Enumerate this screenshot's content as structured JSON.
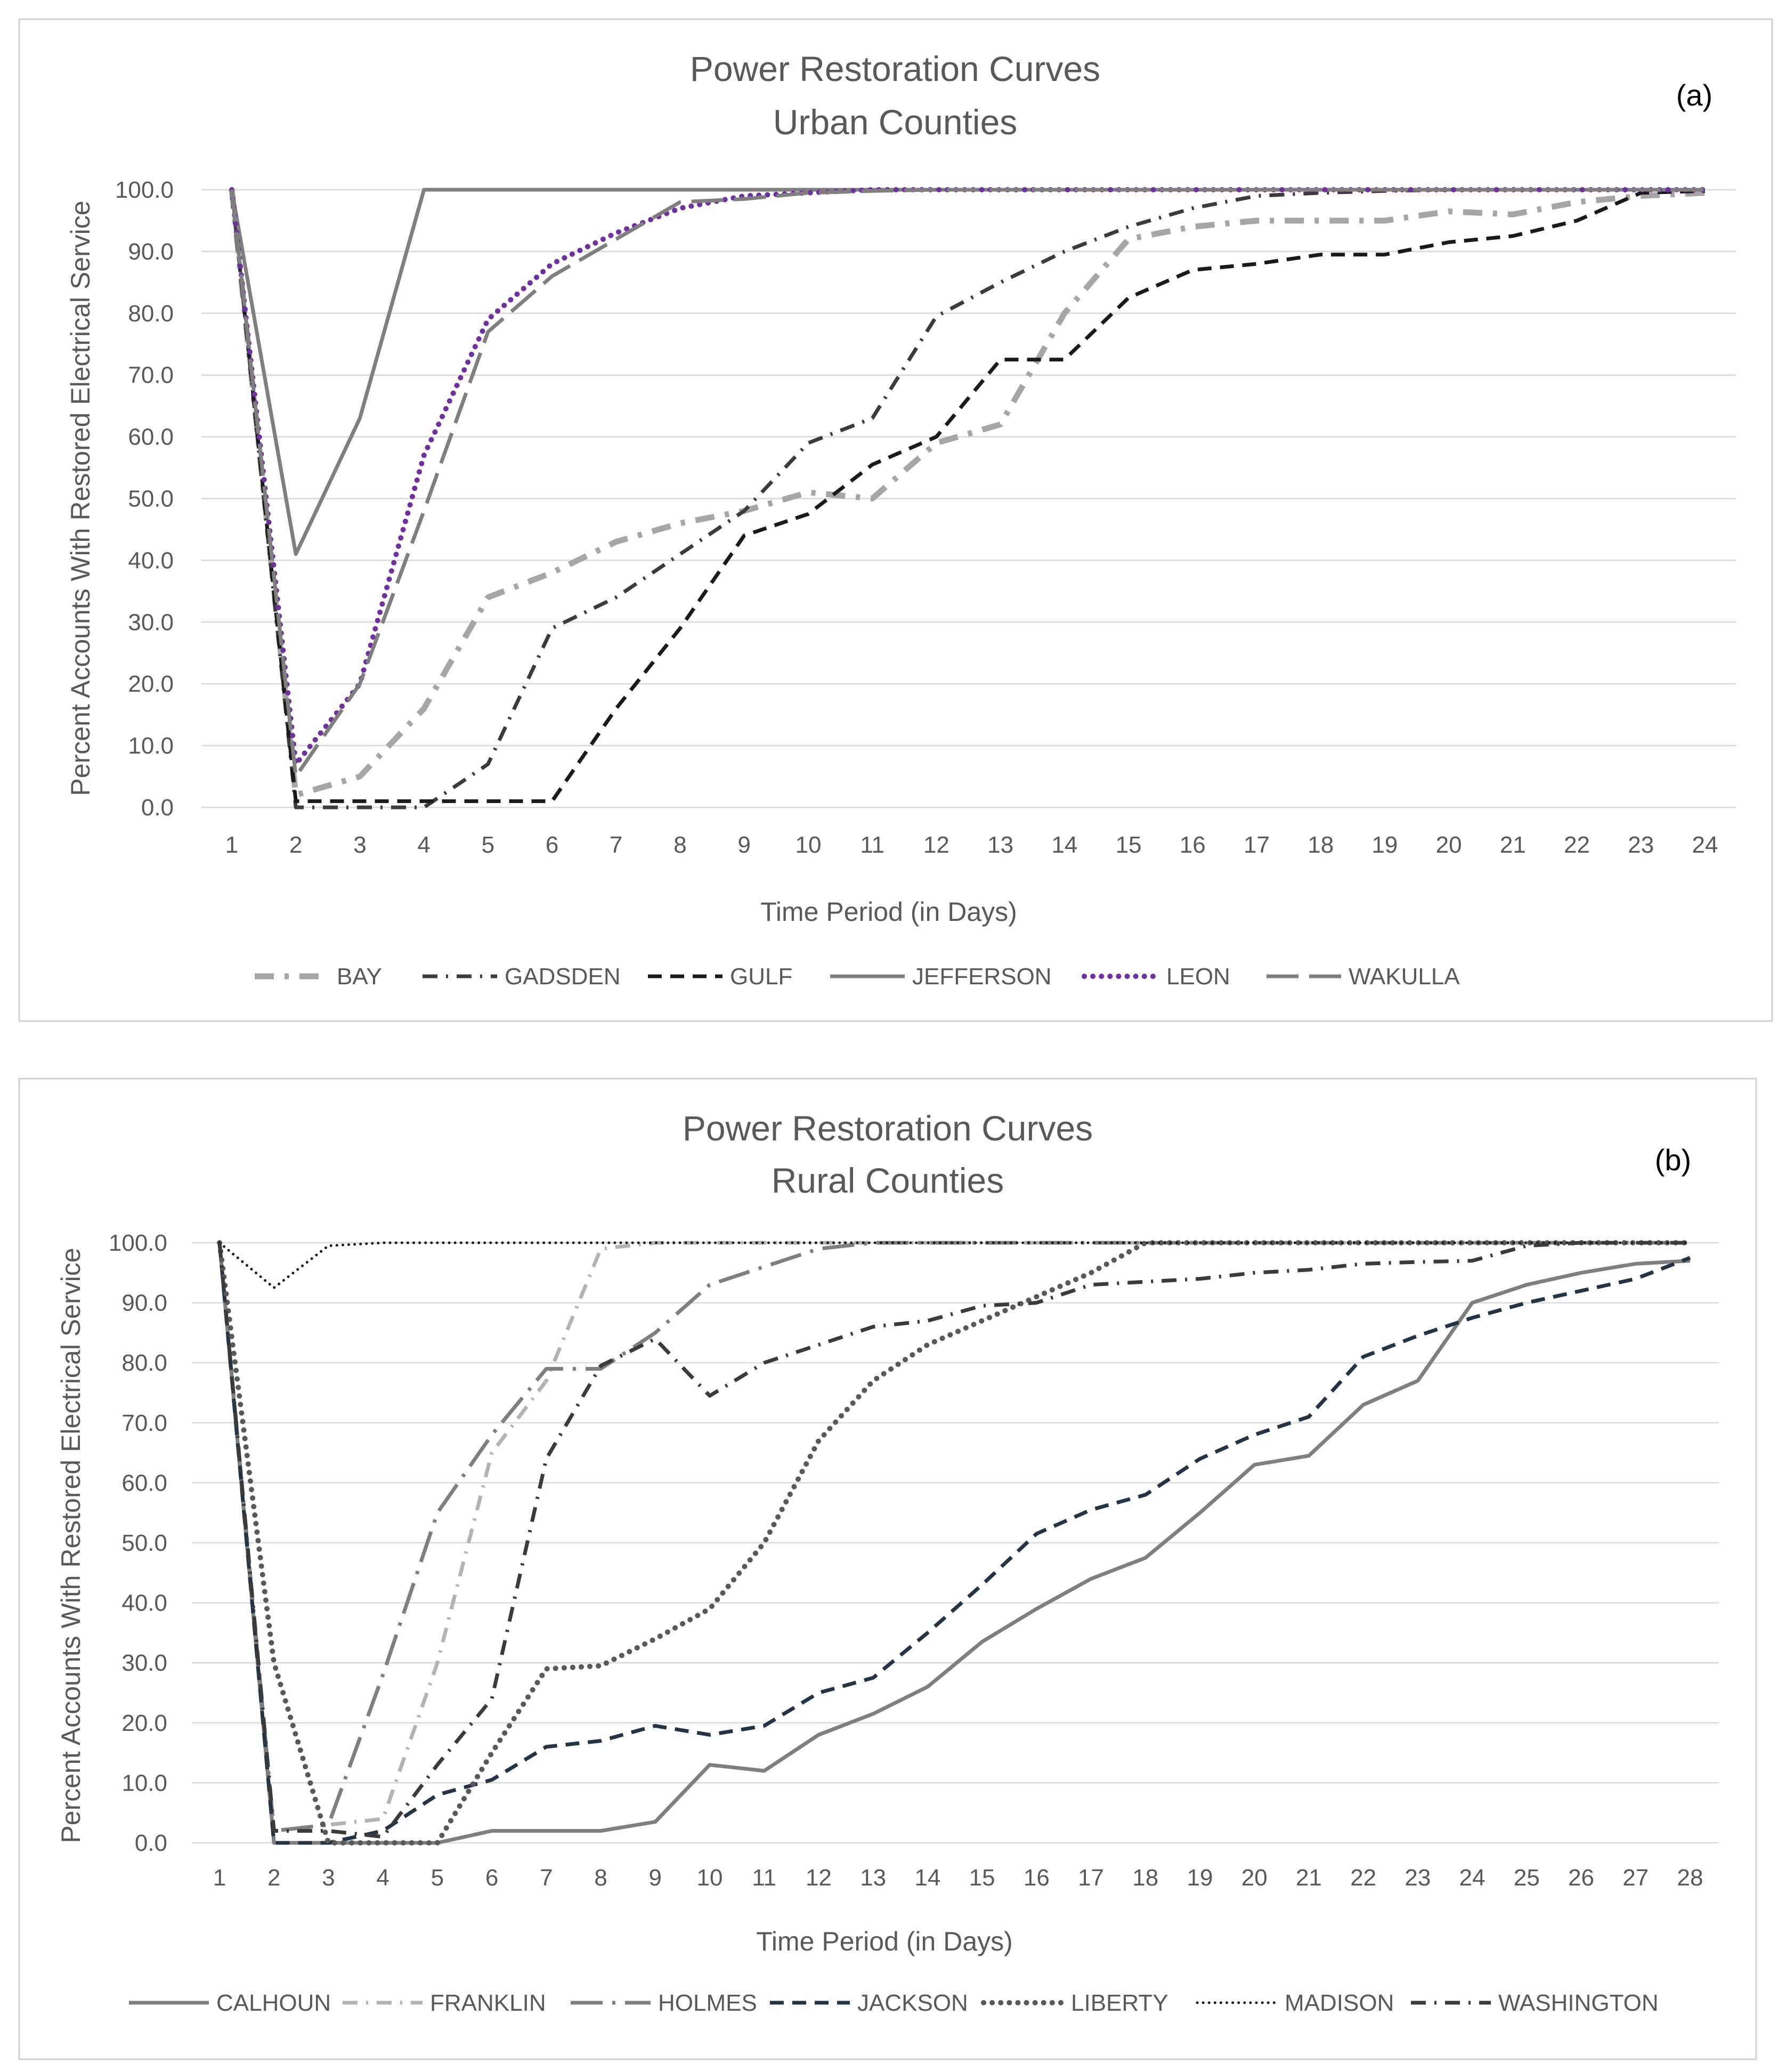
{
  "chart_data": [
    {
      "type": "line",
      "panel_label": "(a)",
      "title": "Power Restoration Curves",
      "subtitle": "Urban Counties",
      "xlabel": "Time Period (in Days)",
      "ylabel": "Percent Accounts With Restored  Electrical Service",
      "x": [
        1,
        2,
        3,
        4,
        5,
        6,
        7,
        8,
        9,
        10,
        11,
        12,
        13,
        14,
        15,
        16,
        17,
        18,
        19,
        20,
        21,
        22,
        23,
        24
      ],
      "x_tick_labels": [
        "1",
        "2",
        "3",
        "4",
        "5",
        "6",
        "7",
        "8",
        "9",
        "10",
        "11",
        "12",
        "13",
        "14",
        "15",
        "16",
        "17",
        "18",
        "19",
        "20",
        "21",
        "22",
        "23",
        "24"
      ],
      "ylim": [
        0,
        100
      ],
      "y_tick_labels": [
        "0.0",
        "10.0",
        "20.0",
        "30.0",
        "40.0",
        "50.0",
        "60.0",
        "70.0",
        "80.0",
        "90.0",
        "100.0"
      ],
      "grid": true,
      "legend_position": "bottom",
      "series": [
        {
          "name": "BAY",
          "color": "#a6a6a6",
          "dash": "dashdot-thick",
          "values": [
            100,
            2,
            5,
            16,
            34,
            38,
            43,
            46,
            48,
            51,
            50,
            59,
            62,
            80,
            92,
            94,
            95,
            95,
            95,
            96.5,
            96,
            98,
            99,
            99.5
          ]
        },
        {
          "name": "GADSDEN",
          "color": "#3b3b3b",
          "dash": "dashdot",
          "values": [
            100,
            0,
            0,
            0,
            7,
            29,
            34,
            41,
            48,
            59,
            63,
            79.5,
            85,
            90,
            94,
            97,
            99,
            99.5,
            99.8,
            100,
            100,
            100,
            100,
            100
          ]
        },
        {
          "name": "GULF",
          "color": "#1a1a1a",
          "dash": "dash",
          "values": [
            100,
            1,
            1,
            1,
            1,
            1,
            16,
            29,
            44,
            47.5,
            55.5,
            60,
            72.5,
            72.5,
            82.5,
            87,
            88,
            89.5,
            89.5,
            91.5,
            92.5,
            95,
            99.5,
            99.8
          ]
        },
        {
          "name": "JEFFERSON",
          "color": "#7f7f7f",
          "dash": "solid",
          "values": [
            100,
            41,
            63,
            100,
            100,
            100,
            100,
            100,
            100,
            100,
            100,
            100,
            100,
            100,
            100,
            100,
            100,
            100,
            100,
            100,
            100,
            100,
            100,
            100
          ]
        },
        {
          "name": "LEON",
          "color": "#7030a0",
          "dash": "dot",
          "values": [
            100,
            7,
            20,
            57,
            79,
            88,
            93,
            97,
            99,
            99.5,
            100,
            100,
            100,
            100,
            100,
            100,
            100,
            100,
            100,
            100,
            100,
            100,
            100,
            100
          ]
        },
        {
          "name": "WAKULLA",
          "color": "#7f7f7f",
          "dash": "longdash",
          "values": [
            100,
            5,
            20,
            48,
            77,
            86,
            92,
            98,
            98.5,
            99.5,
            99.8,
            100,
            100,
            100,
            100,
            100,
            100,
            100,
            100,
            100,
            100,
            100,
            100,
            100
          ]
        }
      ]
    },
    {
      "type": "line",
      "panel_label": "(b)",
      "title": "Power Restoration Curves",
      "subtitle": "Rural Counties",
      "xlabel": "Time Period (in Days)",
      "ylabel": "Percent Accounts With Restored Electrical Service",
      "x": [
        1,
        2,
        3,
        4,
        5,
        6,
        7,
        8,
        9,
        10,
        11,
        12,
        13,
        14,
        15,
        16,
        17,
        18,
        19,
        20,
        21,
        22,
        23,
        24,
        25,
        26,
        27,
        28
      ],
      "x_tick_labels": [
        "1",
        "2",
        "3",
        "4",
        "5",
        "6",
        "7",
        "8",
        "9",
        "10",
        "11",
        "12",
        "13",
        "14",
        "15",
        "16",
        "17",
        "18",
        "19",
        "20",
        "21",
        "22",
        "23",
        "24",
        "25",
        "26",
        "27",
        "28"
      ],
      "ylim": [
        0,
        100
      ],
      "y_tick_labels": [
        "0.0",
        "10.0",
        "20.0",
        "30.0",
        "40.0",
        "50.0",
        "60.0",
        "70.0",
        "80.0",
        "90.0",
        "100.0"
      ],
      "grid": true,
      "legend_position": "bottom",
      "series": [
        {
          "name": "CALHOUN",
          "color": "#7f7f7f",
          "dash": "solid",
          "values": [
            100,
            0,
            0,
            0,
            0,
            2,
            2,
            2,
            3.5,
            13,
            12,
            18,
            21.5,
            26,
            33.5,
            39,
            44,
            47.5,
            55,
            63,
            64.5,
            73,
            77,
            90,
            93,
            95,
            96.5,
            97
          ]
        },
        {
          "name": "FRANKLIN",
          "color": "#b3b3b3",
          "dash": "dashdot",
          "values": [
            100,
            2,
            3,
            4,
            30,
            65,
            77,
            99,
            100,
            100,
            100,
            100,
            100,
            100,
            100,
            100,
            100,
            100,
            100,
            100,
            100,
            100,
            100,
            100,
            100,
            100,
            100,
            100
          ]
        },
        {
          "name": "HOLMES",
          "color": "#7f7f7f",
          "dash": "longdashdot",
          "values": [
            100,
            2,
            3,
            28,
            55,
            68,
            79,
            79,
            85,
            93,
            96,
            99,
            100,
            100,
            100,
            100,
            100,
            100,
            100,
            100,
            100,
            100,
            100,
            100,
            100,
            100,
            100,
            100
          ]
        },
        {
          "name": "JACKSON",
          "color": "#243447",
          "dash": "dash",
          "values": [
            100,
            0,
            0,
            2,
            8,
            10.5,
            16,
            17,
            19.5,
            18,
            19.5,
            25,
            27.5,
            35,
            43,
            51.5,
            55.5,
            58,
            64,
            68,
            71,
            81,
            84.5,
            87.5,
            90,
            92,
            94,
            97.5
          ]
        },
        {
          "name": "LIBERTY",
          "color": "#595959",
          "dash": "dot",
          "values": [
            100,
            30,
            0,
            0,
            0,
            15,
            29,
            29.5,
            34,
            39,
            50,
            67,
            77,
            83,
            87,
            91,
            95,
            100,
            100,
            100,
            100,
            100,
            100,
            100,
            100,
            100,
            100,
            100
          ]
        },
        {
          "name": "MADISON",
          "color": "#1a1a1a",
          "dash": "finedot",
          "values": [
            100,
            92.5,
            99.5,
            100,
            100,
            100,
            100,
            100,
            100,
            100,
            100,
            100,
            100,
            100,
            100,
            100,
            100,
            100,
            100,
            100,
            100,
            100,
            100,
            100,
            100,
            100,
            100,
            100
          ]
        },
        {
          "name": "WASHINGTON",
          "color": "#3b3b3b",
          "dash": "dashdot",
          "values": [
            100,
            2,
            2,
            1,
            13,
            24,
            64,
            79.5,
            84,
            74.5,
            80,
            83,
            86,
            87,
            89.5,
            90,
            93,
            93.5,
            94,
            95,
            95.5,
            96.5,
            96.8,
            97,
            99.5,
            100,
            100,
            100
          ]
        }
      ]
    }
  ]
}
